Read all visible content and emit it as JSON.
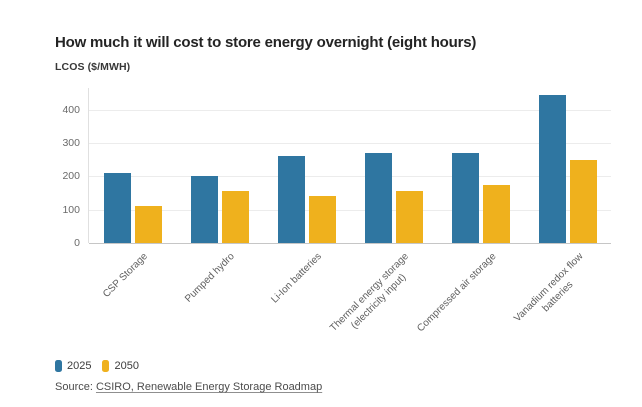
{
  "chart_data": {
    "type": "bar",
    "title": "How much it will cost to store energy overnight (eight hours)",
    "ylabel": "LCOS ($/MWH)",
    "xlabel": "",
    "categories": [
      "CSP Storage",
      "Pumped hydro",
      "Li-Ion batteries",
      "Thermal energy storage\n(electricity input)",
      "Compressed air storage",
      "Vanadium redox flow\nbatteries"
    ],
    "series": [
      {
        "name": "2025",
        "color": "#2f76a1",
        "values": [
          210,
          200,
          260,
          270,
          270,
          445
        ]
      },
      {
        "name": "2050",
        "color": "#efb11d",
        "values": [
          110,
          155,
          140,
          155,
          175,
          250
        ]
      }
    ],
    "y_ticks": [
      0,
      100,
      200,
      300,
      400
    ],
    "ylim": [
      0,
      465
    ],
    "grid": "horizontal",
    "legend_position": "bottom-left",
    "source": {
      "prefix": "Source: ",
      "link_text": "CSIRO, Renewable Energy Storage Roadmap"
    }
  }
}
